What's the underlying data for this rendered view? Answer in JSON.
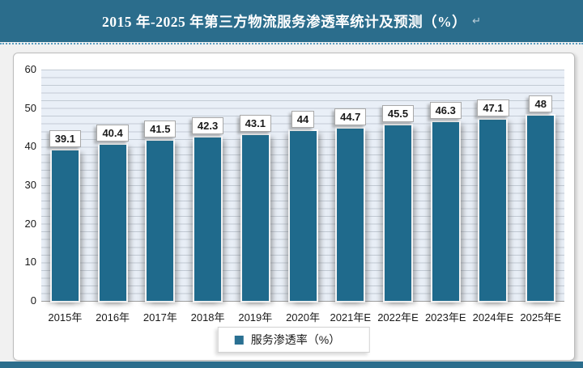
{
  "header": {
    "title": "2015 年-2025 年第三方物流服务渗透率统计及预测（%）",
    "return_mark": "↵"
  },
  "legend": {
    "label": "服务渗透率（%）"
  },
  "colors": {
    "accent_band": "#2b6d8c",
    "bar": "#1f6a8c",
    "legend_swatch": "#2a7092",
    "plot_band": "#e9eff7",
    "gridline": "#c2cad4"
  },
  "chart_data": {
    "type": "bar",
    "title": "2015 年-2025 年第三方物流服务渗透率统计及预测（%）",
    "categories": [
      "2015年",
      "2016年",
      "2017年",
      "2018年",
      "2019年",
      "2020年",
      "2021年E",
      "2022年E",
      "2023年E",
      "2024年E",
      "2025年E"
    ],
    "values": [
      39.1,
      40.4,
      41.5,
      42.3,
      43.1,
      44,
      44.7,
      45.5,
      46.3,
      47.1,
      48
    ],
    "series_name": "服务渗透率（%）",
    "xlabel": "",
    "ylabel": "",
    "ylim": [
      0,
      60
    ],
    "yticks": [
      0,
      10,
      20,
      30,
      40,
      50,
      60
    ],
    "minor_grid_step": 2,
    "grid": "horizontal",
    "legend_position": "bottom",
    "bar_color": "#1f6a8c"
  }
}
